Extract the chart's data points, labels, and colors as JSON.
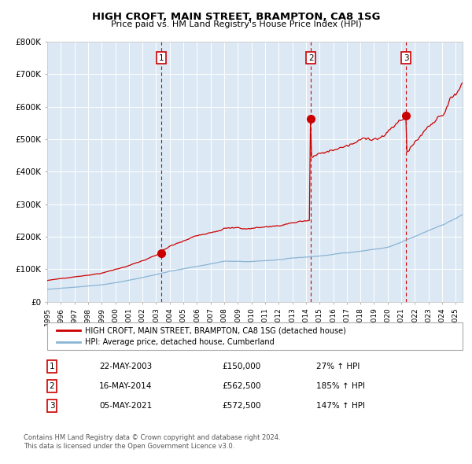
{
  "title": "HIGH CROFT, MAIN STREET, BRAMPTON, CA8 1SG",
  "subtitle": "Price paid vs. HM Land Registry's House Price Index (HPI)",
  "background_color": "#dce9f5",
  "ylim": [
    0,
    800000
  ],
  "yticks": [
    0,
    100000,
    200000,
    300000,
    400000,
    500000,
    600000,
    700000,
    800000
  ],
  "ytick_labels": [
    "£0",
    "£100K",
    "£200K",
    "£300K",
    "£400K",
    "£500K",
    "£600K",
    "£700K",
    "£800K"
  ],
  "hpi_color": "#8ab4d4",
  "price_color": "#cc0000",
  "sale1_year": 2003.38,
  "sale1_price": 150000,
  "sale2_year": 2014.37,
  "sale2_price": 562500,
  "sale3_year": 2021.34,
  "sale3_price": 572500,
  "legend_line1": "HIGH CROFT, MAIN STREET, BRAMPTON, CA8 1SG (detached house)",
  "legend_line2": "HPI: Average price, detached house, Cumberland",
  "table_row1": [
    "1",
    "22-MAY-2003",
    "£150,000",
    "27% ↑ HPI"
  ],
  "table_row2": [
    "2",
    "16-MAY-2014",
    "£562,500",
    "185% ↑ HPI"
  ],
  "table_row3": [
    "3",
    "05-MAY-2021",
    "£572,500",
    "147% ↑ HPI"
  ],
  "footnote1": "Contains HM Land Registry data © Crown copyright and database right 2024.",
  "footnote2": "This data is licensed under the Open Government Licence v3.0.",
  "xmin": 1995,
  "xmax": 2025.5
}
